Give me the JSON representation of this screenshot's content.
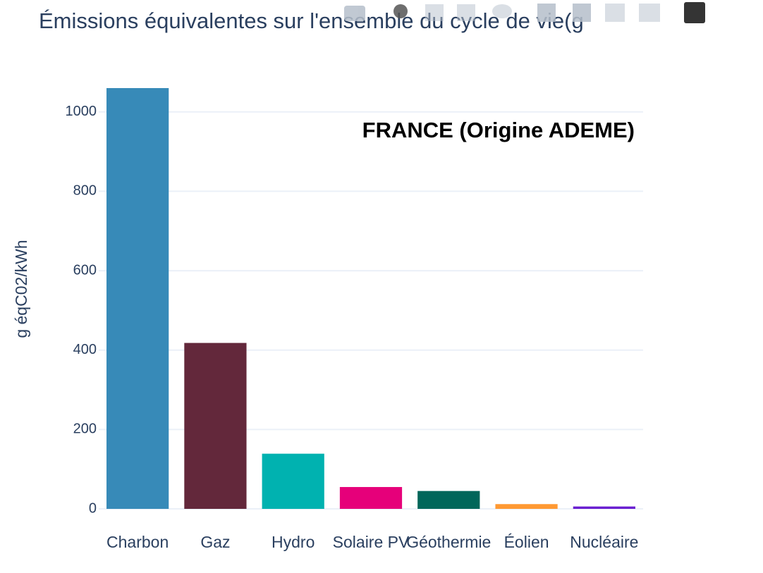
{
  "chart_data": {
    "type": "bar",
    "title": "Émissions équivalentes sur l'ensemble du cycle de vie(g",
    "annotation": "FRANCE (Origine ADEME)",
    "y_label": "g éqC02/kWh",
    "categories": [
      "Charbon",
      "Gaz",
      "Hydro",
      "Solaire PV",
      "Géothermie",
      "Éolien",
      "Nucléaire"
    ],
    "values": [
      1060,
      418,
      139,
      55,
      45,
      12,
      6
    ],
    "colors": [
      "#378ab8",
      "#63283b",
      "#00b2b0",
      "#e6007a",
      "#00665a",
      "#ff9933",
      "#6a1fd1"
    ],
    "ylim": [
      0,
      1115
    ],
    "yticks": [
      0,
      200,
      400,
      600,
      800,
      1000
    ],
    "grid": true
  }
}
